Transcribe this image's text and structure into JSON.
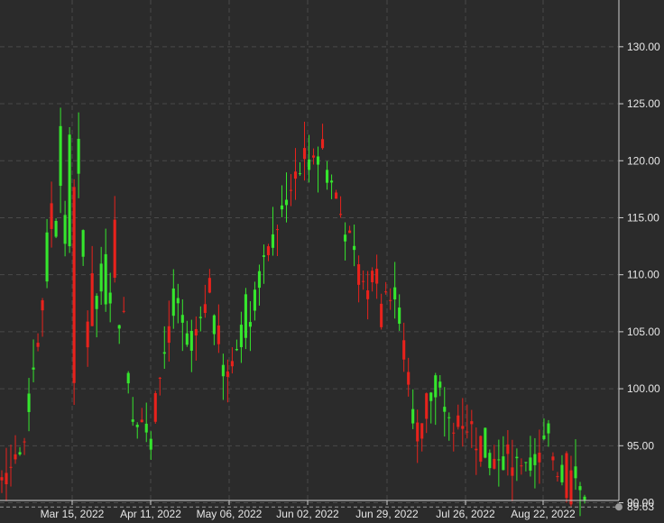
{
  "chart_data": {
    "type": "candlestick",
    "title": "",
    "xlabel": "",
    "ylabel": "",
    "ylim": [
      90.2,
      134.1
    ],
    "y_ticks": [
      "130.00",
      "125.00",
      "120.00",
      "115.00",
      "110.00",
      "105.00",
      "100.00",
      "95.00",
      "90.00"
    ],
    "x_tick_labels": [
      "Mar 15, 2022",
      "Apr 11, 2022",
      "May 06, 2022",
      "Jun 02, 2022",
      "Jun 29, 2022",
      "Jul 26, 2022",
      "Aug 22, 2022"
    ],
    "last_price": 89.63,
    "last_price_label": "89.63",
    "grid": true,
    "colors": {
      "background": "#2b2b2b",
      "up": "#35e62d",
      "down": "#e8221c",
      "grid": "#4a4a4a",
      "axis": "#cfcfcf",
      "text": "#e6e6e6",
      "price_line": "#9a9a9a"
    },
    "trend_points": [
      [
        94,
        90
      ],
      [
        93,
        96
      ],
      [
        104,
        105
      ],
      [
        130,
        112
      ],
      [
        124,
        94
      ],
      [
        110,
        105
      ],
      [
        116,
        108
      ],
      [
        99,
        96
      ],
      [
        94,
        99
      ],
      [
        110,
        104
      ],
      [
        105,
        100
      ],
      [
        107,
        111
      ],
      [
        99,
        102
      ],
      [
        109,
        104
      ],
      [
        112,
        110
      ],
      [
        117,
        115
      ],
      [
        117,
        122
      ],
      [
        123,
        119
      ],
      [
        117,
        114
      ],
      [
        111,
        109
      ],
      [
        104,
        111
      ],
      [
        110,
        106
      ],
      [
        97,
        95
      ],
      [
        104,
        96
      ],
      [
        94,
        99
      ],
      [
        98,
        95
      ],
      [
        96,
        92
      ],
      [
        91,
        96
      ],
      [
        94,
        92
      ],
      [
        97,
        93
      ],
      [
        97,
        89
      ],
      [
        91,
        90
      ]
    ],
    "candle_count": 130
  }
}
